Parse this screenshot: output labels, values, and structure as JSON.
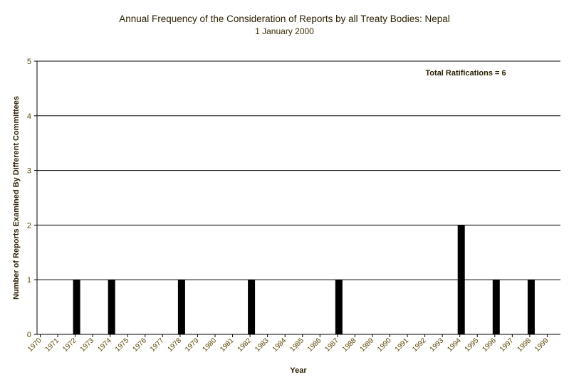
{
  "chart_data": {
    "type": "bar",
    "title": "Annual Frequency of the Consideration of Reports by all Treaty Bodies: Nepal",
    "subtitle": "1 January 2000",
    "xlabel": "Year",
    "ylabel": "Number of Reports Examined By Different Committees",
    "annotation": "Total Ratifications = 6",
    "ylim": [
      0,
      5
    ],
    "yticks": [
      "0",
      "1",
      "2",
      "3",
      "4",
      "5"
    ],
    "grid": true,
    "categories": [
      "1970",
      "1971",
      "1972",
      "1973",
      "1974",
      "1975",
      "1976",
      "1977",
      "1978",
      "1979",
      "1980",
      "1981",
      "1982",
      "1983",
      "1984",
      "1985",
      "1986",
      "1987",
      "1988",
      "1989",
      "1990",
      "1991",
      "1992",
      "1993",
      "1994",
      "1995",
      "1996",
      "1997",
      "1998",
      "1999"
    ],
    "bars": [
      {
        "x": "1972",
        "value": 1
      },
      {
        "x": "1974",
        "value": 1
      },
      {
        "x": "1978",
        "value": 1
      },
      {
        "x": "1982",
        "value": 1
      },
      {
        "x": "1987",
        "value": 1
      },
      {
        "x": "1994",
        "value": 2
      },
      {
        "x": "1996",
        "value": 1
      },
      {
        "x": "1998",
        "value": 1
      }
    ],
    "colors": {
      "bar": "#000000",
      "axis": "#000000",
      "grid": "#000000",
      "tick_label": "#5a4600",
      "title": "#2b2000"
    }
  }
}
